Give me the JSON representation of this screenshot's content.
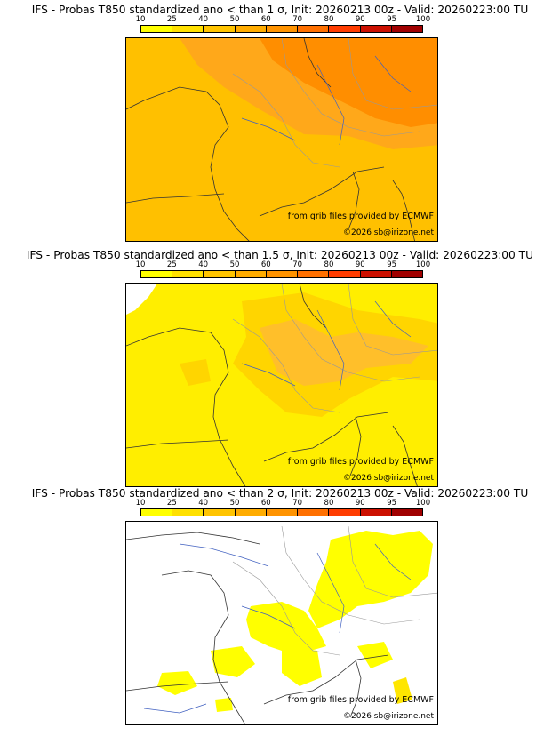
{
  "colorbar": {
    "ticks": [
      "10",
      "25",
      "40",
      "50",
      "60",
      "70",
      "80",
      "90",
      "95",
      "100"
    ],
    "colors": [
      "#ffff00",
      "#ffe000",
      "#ffc400",
      "#ffac00",
      "#ff9300",
      "#ff7000",
      "#ff3c00",
      "#cc1000",
      "#a00000",
      "#600000"
    ]
  },
  "panels": [
    {
      "title": "IFS - Probas T850  standardized ano < than 1 σ, Init: 20260213 00z - Valid: 20260223:00 TU",
      "credit": "from grib files provided by ECMWF",
      "copyright": "©2026 sb@irizone.net",
      "fill_colors": [
        "#ffc000",
        "#ffa81a",
        "#ff8e00"
      ]
    },
    {
      "title": "IFS - Probas T850  standardized ano < than 1.5 σ, Init: 20260213 00z - Valid: 20260223:00 TU",
      "credit": "from grib files provided by ECMWF",
      "copyright": "©2026 sb@irizone.net",
      "fill_colors": [
        "#ffee00",
        "#ffd500",
        "#ffbf2a"
      ]
    },
    {
      "title": "IFS - Probas T850  standardized ano < than 2 σ, Init: 20260213 00z - Valid: 20260223:00 TU",
      "credit": "from grib files provided by ECMWF",
      "copyright": "©2026 sb@irizone.net",
      "fill_colors": [
        "#ffff00",
        "#ffe600"
      ]
    }
  ]
}
